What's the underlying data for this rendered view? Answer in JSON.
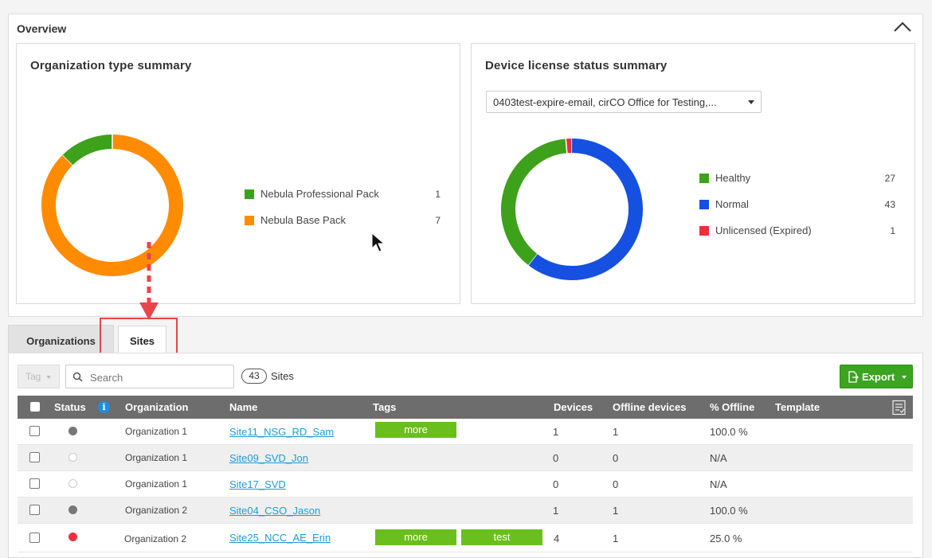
{
  "overview": {
    "title": "Overview"
  },
  "org_summary": {
    "title": "Organization type summary",
    "legend": [
      {
        "label": "Nebula Professional Pack",
        "value": "1",
        "color": "#3ea11b"
      },
      {
        "label": "Nebula Base Pack",
        "value": "7",
        "color": "#ff8c00"
      }
    ]
  },
  "license_summary": {
    "title": "Device license status summary",
    "dropdown_value": "0403test-expire-email, cirCO Office for Testing,...",
    "legend": [
      {
        "label": "Healthy",
        "value": "27",
        "color": "#3ea11b"
      },
      {
        "label": "Normal",
        "value": "43",
        "color": "#1550e0"
      },
      {
        "label": "Unlicensed (Expired)",
        "value": "1",
        "color": "#e8303c"
      }
    ]
  },
  "tabs": [
    {
      "label": "Organizations"
    },
    {
      "label": "Sites"
    }
  ],
  "toolbar": {
    "tag_label": "Tag",
    "search_placeholder": "Search",
    "count": "43",
    "count_label": "Sites",
    "export_label": "Export"
  },
  "table": {
    "headers": {
      "status": "Status",
      "organization": "Organization",
      "name": "Name",
      "tags": "Tags",
      "devices": "Devices",
      "offline": "Offline devices",
      "pct_offline": "% Offline",
      "template": "Template"
    },
    "rows": [
      {
        "status": "gray",
        "organization": "Organization 1",
        "name": "Site11_NSG_RD_Sam",
        "tags": [
          "more"
        ],
        "devices": "1",
        "offline": "1",
        "pct_offline": "100.0 %"
      },
      {
        "status": "empty",
        "organization": "Organization 1",
        "name": "Site09_SVD_Jon",
        "tags": [],
        "devices": "0",
        "offline": "0",
        "pct_offline": "N/A"
      },
      {
        "status": "empty",
        "organization": "Organization 1",
        "name": "Site17_SVD",
        "tags": [],
        "devices": "0",
        "offline": "0",
        "pct_offline": "N/A"
      },
      {
        "status": "gray",
        "organization": "Organization 2",
        "name": "Site04_CSO_Jason",
        "tags": [],
        "devices": "1",
        "offline": "1",
        "pct_offline": "100.0 %"
      },
      {
        "status": "red",
        "organization": "Organization 2",
        "name": "Site25_NCC_AE_Erin",
        "tags": [
          "more",
          "test"
        ],
        "devices": "4",
        "offline": "1",
        "pct_offline": "25.0 %"
      }
    ]
  }
}
